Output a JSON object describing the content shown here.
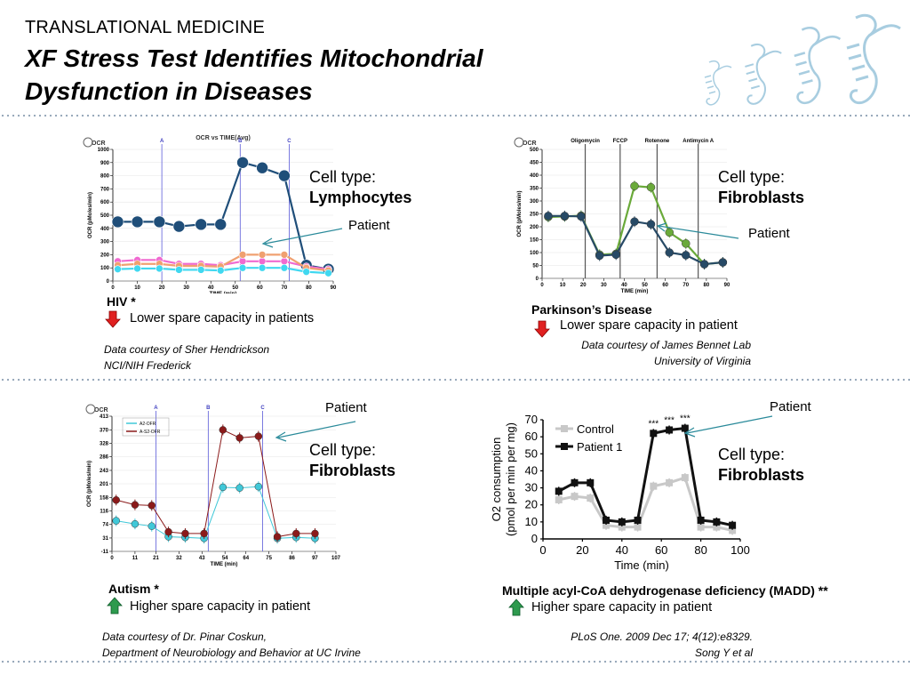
{
  "header": {
    "kicker": "TRANSLATIONAL MEDICINE",
    "title_line1": "XF Stress Test Identifies Mitochondrial",
    "title_line2": "Dysfunction in Diseases"
  },
  "colors": {
    "blue_dark": "#1f4e79",
    "pink": "#f06ad0",
    "salmon": "#f0a070",
    "cyan": "#40d8f0",
    "green": "#6aaa3a",
    "navy": "#274a66",
    "maroon": "#8b1a1a",
    "teal": "#40c8d8",
    "gray": "#c8c8c8",
    "black": "#111111",
    "red_arrow": "#e02020",
    "green_arrow": "#2e9a4e"
  },
  "panels": {
    "hiv": {
      "cell_type_label": "Cell type:",
      "cell_type": "Lymphocytes",
      "patient": "Patient",
      "disease": "HIV *",
      "effect": "Lower spare capacity in patients",
      "credit1": "Data courtesy of Sher Hendrickson",
      "credit2": "NCI/NIH Frederick"
    },
    "parkinson": {
      "cell_type_label": "Cell type:",
      "cell_type": "Fibroblasts",
      "patient": "Patient",
      "disease": "Parkinson’s Disease",
      "effect": "Lower spare capacity in patient",
      "credit1": "Data courtesy of James Bennet Lab",
      "credit2": "University of Virginia"
    },
    "autism": {
      "cell_type_label": "Cell type:",
      "cell_type": "Fibroblasts",
      "patient": "Patient",
      "disease": "Autism  *",
      "effect": "Higher spare capacity in patient",
      "credit1": "Data courtesy of Dr. Pinar Coskun,",
      "credit2": "Department of Neurobiology and Behavior at UC Irvine"
    },
    "madd": {
      "cell_type_label": "Cell type:",
      "cell_type": "Fibroblasts",
      "patient": "Patient",
      "disease": "Multiple acyl-CoA dehydrogenase deficiency (MADD) **",
      "effect": "Higher spare capacity in patient",
      "credit1": "PLoS One. 2009 Dec 17; 4(12):e8329.",
      "credit2": "Song Y et al"
    }
  },
  "chart_data": [
    {
      "type": "line",
      "logo": "OCR",
      "title": "OCR vs TIME(Avg)",
      "xlabel": "TIME (min)",
      "ylabel": "OCR (pMoles/min)",
      "xlim": [
        0,
        90
      ],
      "ylim": [
        0,
        1000
      ],
      "xticks": [
        0,
        10,
        20,
        30,
        40,
        50,
        60,
        70,
        80,
        90
      ],
      "yticks": [
        0,
        100,
        200,
        300,
        400,
        500,
        600,
        700,
        800,
        900,
        1000
      ],
      "injections": [
        {
          "label": "A",
          "x": 20
        },
        {
          "label": "B",
          "x": 52
        },
        {
          "label": "C",
          "x": 72
        }
      ],
      "series": [
        {
          "color_key": "blue_dark",
          "x": [
            2,
            10,
            19,
            27,
            36,
            44,
            53,
            61,
            70,
            79,
            88
          ],
          "y": [
            450,
            450,
            450,
            415,
            430,
            430,
            900,
            860,
            800,
            120,
            90
          ]
        },
        {
          "color_key": "pink",
          "x": [
            2,
            10,
            19,
            27,
            36,
            44,
            53,
            61,
            70,
            79,
            88
          ],
          "y": [
            150,
            160,
            160,
            130,
            130,
            120,
            150,
            150,
            150,
            110,
            90
          ]
        },
        {
          "color_key": "salmon",
          "x": [
            2,
            10,
            19,
            27,
            36,
            44,
            53,
            61,
            70,
            79,
            88
          ],
          "y": [
            120,
            130,
            130,
            115,
            115,
            110,
            200,
            200,
            200,
            100,
            80
          ]
        },
        {
          "color_key": "cyan",
          "x": [
            2,
            10,
            19,
            27,
            36,
            44,
            53,
            61,
            70,
            79,
            88
          ],
          "y": [
            90,
            95,
            95,
            85,
            85,
            80,
            100,
            100,
            100,
            70,
            60
          ]
        }
      ]
    },
    {
      "type": "line",
      "logo": "OCR",
      "xlabel": "TIME (min)",
      "ylabel": "OCR (pMoles/min)",
      "xlim": [
        0,
        90
      ],
      "ylim": [
        0,
        500
      ],
      "xticks": [
        0,
        10,
        20,
        30,
        40,
        50,
        60,
        70,
        80,
        90
      ],
      "yticks": [
        0,
        50,
        100,
        150,
        200,
        250,
        300,
        350,
        400,
        450,
        500
      ],
      "injections": [
        {
          "label": "Oligomycin",
          "x": 21
        },
        {
          "label": "FCCP",
          "x": 38
        },
        {
          "label": "Rotenone",
          "x": 56
        },
        {
          "label": "Antimycin A",
          "x": 76
        }
      ],
      "series": [
        {
          "color_key": "green",
          "x": [
            3,
            11,
            19,
            28,
            36,
            45,
            53,
            62,
            70,
            79,
            88
          ],
          "y": [
            238,
            240,
            243,
            92,
            95,
            358,
            353,
            178,
            135,
            55,
            62
          ]
        },
        {
          "color_key": "navy",
          "x": [
            3,
            11,
            19,
            28,
            36,
            45,
            53,
            62,
            70,
            79,
            88
          ],
          "y": [
            242,
            242,
            240,
            88,
            92,
            220,
            210,
            100,
            90,
            55,
            62
          ]
        }
      ]
    },
    {
      "type": "line",
      "logo": "OCR",
      "xlabel": "TIME (min)",
      "ylabel": "OCR (pMoles/min)",
      "xlim": [
        0,
        107
      ],
      "ylim": [
        -11,
        413
      ],
      "xticks": [
        0,
        11,
        21,
        32,
        43,
        54,
        64,
        75,
        86,
        97,
        107
      ],
      "yticks": [
        -11,
        31,
        74,
        116,
        158,
        201,
        243,
        286,
        328,
        370,
        413
      ],
      "injections": [
        {
          "label": "A",
          "x": 21
        },
        {
          "label": "B",
          "x": 46
        },
        {
          "label": "C",
          "x": 72
        }
      ],
      "legend": [
        "A2-OFR",
        "A-S2-OFR"
      ],
      "series": [
        {
          "name": "A2-OFR",
          "color_key": "teal",
          "x": [
            2,
            11,
            19,
            27,
            35,
            44,
            53,
            61,
            70,
            79,
            88,
            97
          ],
          "y": [
            85,
            75,
            68,
            35,
            33,
            30,
            190,
            188,
            192,
            30,
            33,
            30
          ]
        },
        {
          "name": "A-S2-OFR",
          "color_key": "maroon",
          "x": [
            2,
            11,
            19,
            27,
            35,
            44,
            53,
            61,
            70,
            79,
            88,
            97
          ],
          "y": [
            150,
            135,
            133,
            50,
            45,
            45,
            370,
            345,
            350,
            35,
            45,
            45
          ]
        }
      ]
    },
    {
      "type": "line",
      "xlabel": "Time (min)",
      "ylabel": "O2 consumption (pmol per min per mg)",
      "xlim": [
        0,
        100
      ],
      "ylim": [
        0,
        70
      ],
      "xticks": [
        0,
        20,
        40,
        60,
        80,
        100
      ],
      "yticks": [
        0,
        10,
        20,
        30,
        40,
        50,
        60,
        70
      ],
      "annotation": "***",
      "series": [
        {
          "name": "Control",
          "color_key": "gray",
          "x": [
            8,
            16,
            24,
            32,
            40,
            48,
            56,
            64,
            72,
            80,
            88,
            96
          ],
          "y": [
            23,
            25,
            24,
            8,
            7,
            7,
            31,
            33,
            36,
            7,
            7,
            5
          ]
        },
        {
          "name": "Patient 1",
          "color_key": "black",
          "x": [
            8,
            16,
            24,
            32,
            40,
            48,
            56,
            64,
            72,
            80,
            88,
            96
          ],
          "y": [
            28,
            33,
            33,
            11,
            10,
            11,
            62,
            64,
            65,
            11,
            10,
            8
          ]
        }
      ]
    }
  ]
}
